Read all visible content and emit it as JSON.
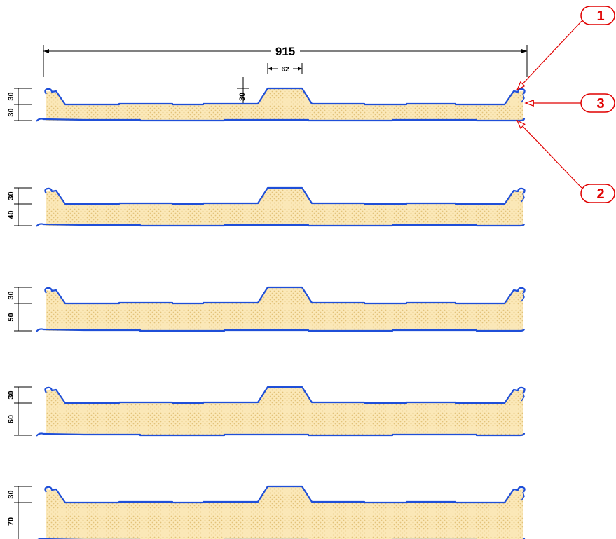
{
  "width_dimension": "915",
  "rib_width_dimension": "62",
  "rib_height_dimension": "30",
  "colors": {
    "steel_line": "#1f4fd8",
    "core_fill": "#fbe8b8",
    "core_dot": "#e2c27a",
    "callout": "#e00000",
    "dimension": "#000000"
  },
  "callouts": [
    {
      "label": "1",
      "points_to": "top-sheet"
    },
    {
      "label": "3",
      "points_to": "core"
    },
    {
      "label": "2",
      "points_to": "bottom-sheet"
    }
  ],
  "panels": [
    {
      "rib_height": "30",
      "core_thickness": "30"
    },
    {
      "rib_height": "30",
      "core_thickness": "40"
    },
    {
      "rib_height": "30",
      "core_thickness": "50"
    },
    {
      "rib_height": "30",
      "core_thickness": "60"
    },
    {
      "rib_height": "30",
      "core_thickness": "70"
    }
  ]
}
